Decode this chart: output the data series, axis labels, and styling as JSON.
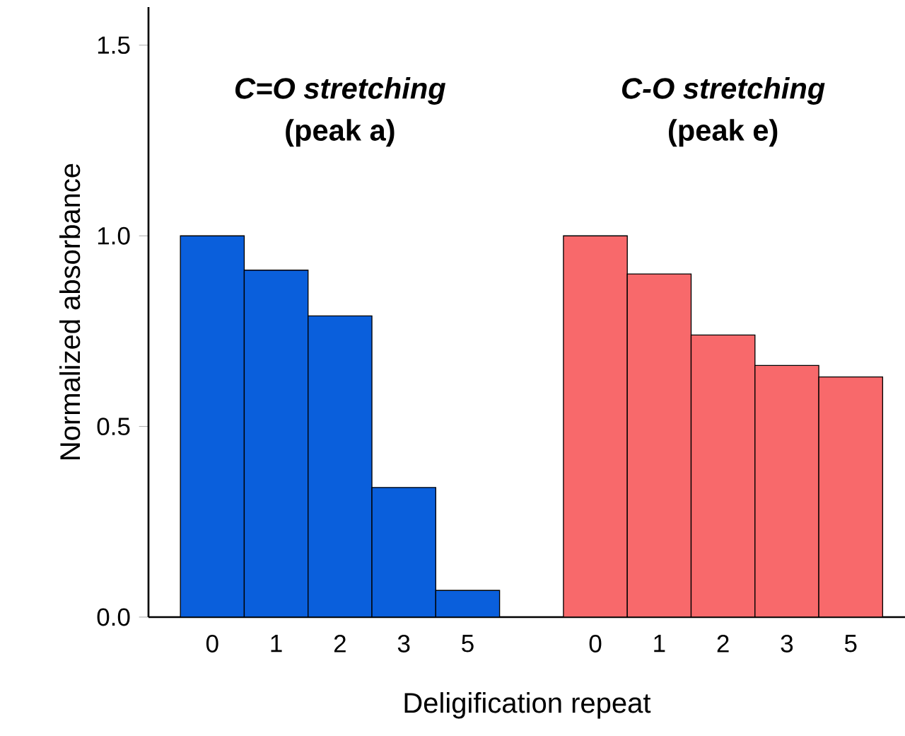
{
  "chart_data": {
    "type": "bar",
    "xlabel": "Deligification repeat",
    "ylabel": "Normalized absorbance",
    "categories": [
      "0",
      "1",
      "2",
      "3",
      "5",
      null,
      "0",
      "1",
      "2",
      "3",
      "5"
    ],
    "series": [
      {
        "color": "#0a5fdc",
        "values": [
          1.0,
          0.91,
          0.79,
          0.34,
          0.07,
          null,
          null,
          null,
          null,
          null,
          null
        ]
      },
      {
        "color": "#f8696b",
        "values": [
          null,
          null,
          null,
          null,
          null,
          null,
          1.0,
          0.9,
          0.74,
          0.66,
          0.63
        ]
      }
    ],
    "ylim": [
      0,
      1.6
    ],
    "yticks": [
      {
        "value": 0,
        "label": "0.0"
      },
      {
        "value": 0.5,
        "label": "0.5"
      },
      {
        "value": 1.0,
        "label": "1.0"
      },
      {
        "value": 1.5,
        "label": "1.5"
      }
    ],
    "annotations": [
      "C=O stretching",
      "(peak a)",
      "C-O stretching",
      "(peak e)"
    ]
  }
}
